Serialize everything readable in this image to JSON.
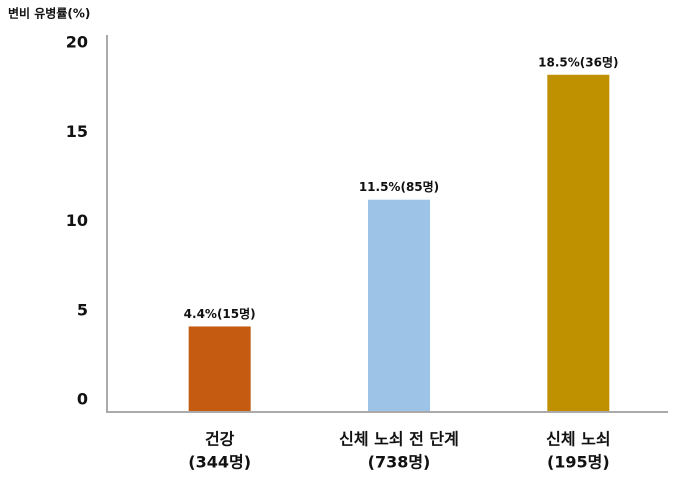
{
  "chart_data": {
    "type": "bar",
    "y_axis_label": "변비 유병률(%)",
    "categories": [
      [
        "건강",
        "(344명)"
      ],
      [
        "신체 노쇠 전 단계",
        "(738명)"
      ],
      [
        "신체 노쇠",
        "(195명)"
      ]
    ],
    "values": [
      4.4,
      11.5,
      18.5
    ],
    "value_labels": [
      "4.4%(15명)",
      "11.5%(85명)",
      "18.5%(36명)"
    ],
    "colors": [
      "#c55a11",
      "#9dc3e6",
      "#bf9000"
    ],
    "ylim": [
      0,
      20
    ],
    "yticks": [
      0,
      5,
      10,
      15,
      20
    ],
    "grid": false
  }
}
